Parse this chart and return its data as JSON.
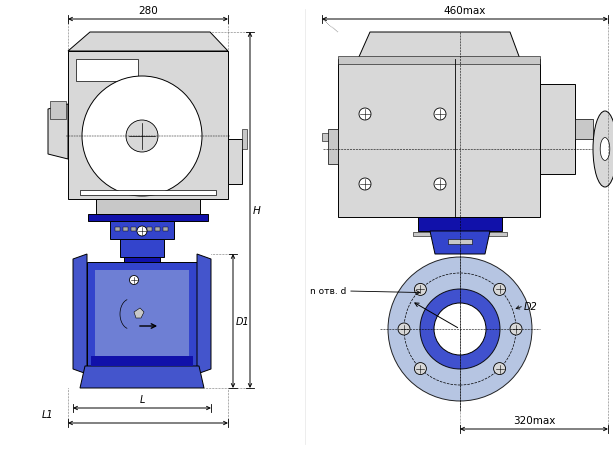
{
  "bg_color": "#ffffff",
  "lc": "#000000",
  "blue_dark": "#1111aa",
  "blue_mid": "#2233bb",
  "blue_body": "#3344cc",
  "blue_light": "#aabbdd",
  "blue_flange": "#4455cc",
  "gray_body": "#d8d8d8",
  "gray_dark": "#aaaaaa",
  "gray_mid": "#c8c8c8",
  "dim_280": "280",
  "dim_460max": "460max",
  "dim_320max": "320max",
  "dim_H": "H",
  "dim_D1": "D1",
  "dim_L": "L",
  "dim_L1": "L1",
  "dim_D2": "D2",
  "dim_n_otv_d": "n отв. d"
}
